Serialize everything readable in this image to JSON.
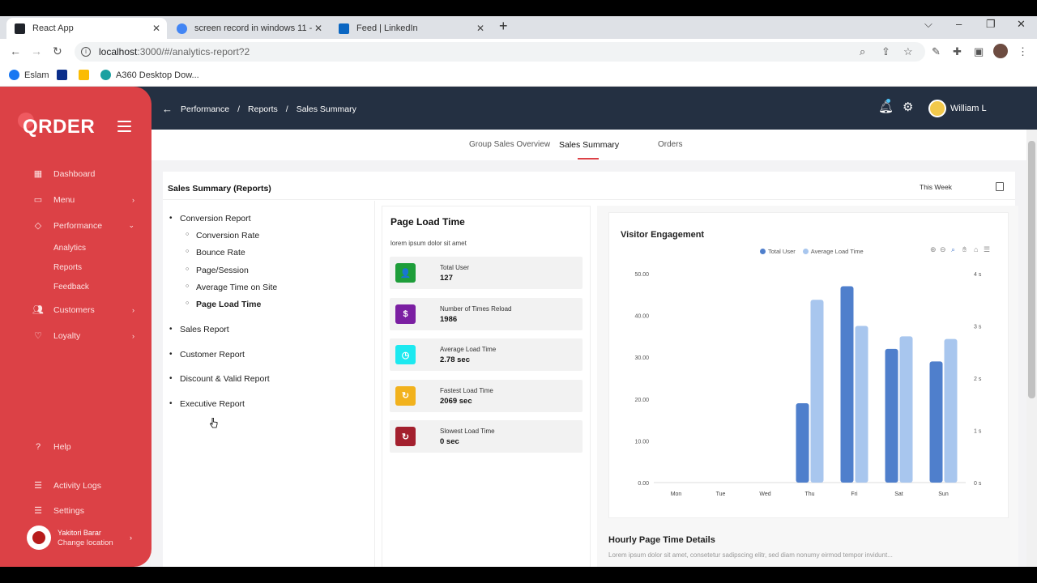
{
  "browser": {
    "tabs": [
      {
        "title": "React App",
        "active": true,
        "favicon_color": "#20232a"
      },
      {
        "title": "screen record in windows 11 - Go",
        "active": false,
        "favicon_color": "#4285f4"
      },
      {
        "title": "Feed | LinkedIn",
        "active": false,
        "favicon_color": "#0a66c2"
      }
    ],
    "url_host": "localhost",
    "url_path": ":3000/#/analytics-report?2",
    "bookmarks": [
      "Eslam",
      "",
      "",
      "A360 Desktop Dow..."
    ]
  },
  "sidebar": {
    "logo": "QRDER",
    "items": [
      {
        "label": "Dashboard",
        "icon": "dashboard-icon"
      },
      {
        "label": "Menu",
        "icon": "menu-icon"
      },
      {
        "label": "Performance",
        "icon": "tag-icon"
      },
      {
        "label": "Customers",
        "icon": "users-icon"
      },
      {
        "label": "Loyalty",
        "icon": "heart-icon"
      }
    ],
    "sub_items": [
      "Analytics",
      "Reports",
      "Feedback"
    ],
    "bottom_items": [
      {
        "label": "Help",
        "icon": "help-icon"
      },
      {
        "label": "Activity Logs",
        "icon": "sliders-icon"
      },
      {
        "label": "Settings",
        "icon": "settings-icon"
      }
    ],
    "location": {
      "name": "Yakitori Barar",
      "action": "Change location"
    }
  },
  "topnav": {
    "breadcrumb": [
      "Performance",
      "Reports",
      "Sales Summary"
    ],
    "user_name": "William L"
  },
  "tabs": [
    "Group Sales Overview",
    "Sales Summary",
    "Orders"
  ],
  "panel": {
    "title": "Sales Summary (Reports)",
    "period": "This Week"
  },
  "tree": {
    "items": [
      {
        "label": "Conversion Report",
        "level": 1
      },
      {
        "label": "Conversion Rate",
        "level": 2
      },
      {
        "label": "Bounce Rate",
        "level": 2
      },
      {
        "label": "Page/Session",
        "level": 2
      },
      {
        "label": "Average Time on Site",
        "level": 2
      },
      {
        "label": "Page Load Time",
        "level": 2,
        "selected": true
      },
      {
        "label": "Sales Report",
        "level": 1
      },
      {
        "label": "Customer Report",
        "level": 1
      },
      {
        "label": "Discount & Valid Report",
        "level": 1
      },
      {
        "label": "Executive Report",
        "level": 1
      }
    ]
  },
  "page_load": {
    "title": "Page Load Time",
    "subtitle": "lorem ipsum dolor sit amet",
    "stats": [
      {
        "label": "Total User",
        "value": "127",
        "color": "#1e9e3a",
        "glyph": "👤"
      },
      {
        "label": "Number of Times Reload",
        "value": "1986",
        "color": "#7b1fa2",
        "glyph": "$"
      },
      {
        "label": "Average Load Time",
        "value": "2.78 sec",
        "color": "#1de9f0",
        "glyph": "◷"
      },
      {
        "label": "Fastest Load Time",
        "value": "2069 sec",
        "color": "#f2b21d",
        "glyph": "↻"
      },
      {
        "label": "Slowest Load Time",
        "value": "0 sec",
        "color": "#a3202e",
        "glyph": "↻"
      }
    ]
  },
  "chart_data": {
    "type": "bar",
    "title": "Visitor Engagement",
    "categories": [
      "Mon",
      "Tue",
      "Wed",
      "Thu",
      "Fri",
      "Sat",
      "Sun"
    ],
    "series": [
      {
        "name": "Total User",
        "values": [
          0,
          0,
          0,
          19,
          47,
          32,
          29
        ],
        "color": "#4f7fcc",
        "axis": "left"
      },
      {
        "name": "Average Load Time",
        "values": [
          0,
          0,
          0,
          3.5,
          3.0,
          2.8,
          2.75
        ],
        "color": "#a8c6ee",
        "axis": "right"
      }
    ],
    "ylim_left": [
      0,
      50
    ],
    "ylim_right": [
      0,
      4
    ],
    "yticks_left": [
      "0.00",
      "10.00",
      "20.00",
      "30.00",
      "40.00",
      "50.00"
    ],
    "yticks_right": [
      "0 s",
      "1 s",
      "2 s",
      "3 s",
      "4 s"
    ],
    "legend_position": "top"
  },
  "hourly": {
    "title": "Hourly Page Time Details",
    "subtitle": "Lorem ipsum dolor sit amet, consetetur sadipscing elitr, sed diam nonumy eirmod tempor invidunt..."
  }
}
